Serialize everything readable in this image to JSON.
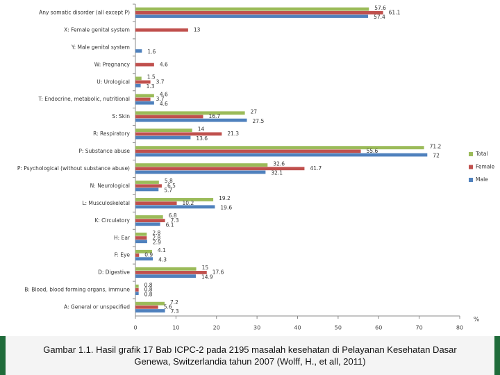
{
  "chart_data": {
    "type": "hbar",
    "categories": [
      "Any somatic disorder (all except P)",
      "X: Female genital system",
      "Y: Male genital system",
      "W: Pregnancy",
      "U: Urological",
      "T: Endocrine, metabolic, nutritional",
      "S: Skin",
      "R: Respiratory",
      "P: Substance abuse",
      "P: Psychological (without substance abuse)",
      "N: Neurological",
      "L: Musculoskeletal",
      "K: Circulatory",
      "H: Ear",
      "F: Eye",
      "D: Digestive",
      "B: Blood, blood forming organs, immune",
      "A: General or unspecified"
    ],
    "series": [
      {
        "name": "Total",
        "color": "#9bbb59",
        "values": [
          57.6,
          null,
          null,
          null,
          1.5,
          4.6,
          27,
          14,
          71.2,
          32.6,
          5.8,
          19.2,
          6.8,
          2.8,
          4.1,
          15,
          0.8,
          7.2
        ]
      },
      {
        "name": "Female",
        "color": "#c0504d",
        "values": [
          61.1,
          13,
          null,
          4.6,
          3.7,
          3.7,
          16.7,
          21.3,
          55.6,
          41.7,
          6.5,
          10.2,
          7.3,
          2.8,
          0.9,
          17.6,
          0.8,
          5.6
        ]
      },
      {
        "name": "Male",
        "color": "#4f81bd",
        "values": [
          57.4,
          null,
          1.6,
          null,
          1.3,
          4.6,
          27.5,
          13.6,
          72,
          32.1,
          5.7,
          19.6,
          6.1,
          2.9,
          4.3,
          14.9,
          0.8,
          7.3
        ]
      }
    ],
    "xlim": [
      0,
      80
    ],
    "xticks": [
      0,
      10,
      20,
      30,
      40,
      50,
      60,
      70,
      80
    ],
    "xlabel": "%",
    "grid": false,
    "legend": "right",
    "caption": [
      "Gambar 1.1. Hasil grafik 17 Bab ICPC-2 pada 2195 masalah kesehatan di Pelayanan Kesehatan Dasar",
      "Genewa, Switzerlandia tahun 2007 (Wolff, H., et all, 2011)"
    ]
  }
}
